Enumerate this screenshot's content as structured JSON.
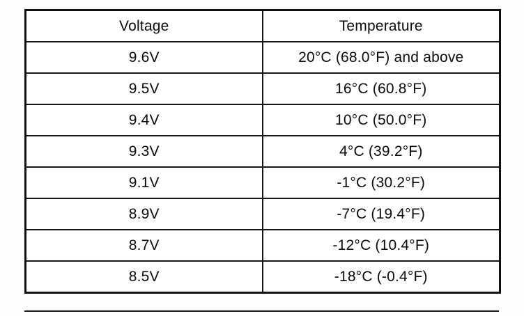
{
  "table": {
    "headers": [
      "Voltage",
      "Temperature"
    ],
    "rows": [
      {
        "voltage": "9.6V",
        "temperature": "20°C (68.0°F) and above"
      },
      {
        "voltage": "9.5V",
        "temperature": "16°C (60.8°F)"
      },
      {
        "voltage": "9.4V",
        "temperature": "10°C (50.0°F)"
      },
      {
        "voltage": "9.3V",
        "temperature": "4°C (39.2°F)"
      },
      {
        "voltage": "9.1V",
        "temperature": "-1°C (30.2°F)"
      },
      {
        "voltage": "8.9V",
        "temperature": "-7°C (19.4°F)"
      },
      {
        "voltage": "8.7V",
        "temperature": "-12°C (10.4°F)"
      },
      {
        "voltage": "8.5V",
        "temperature": "-18°C (-0.4°F)"
      }
    ]
  }
}
